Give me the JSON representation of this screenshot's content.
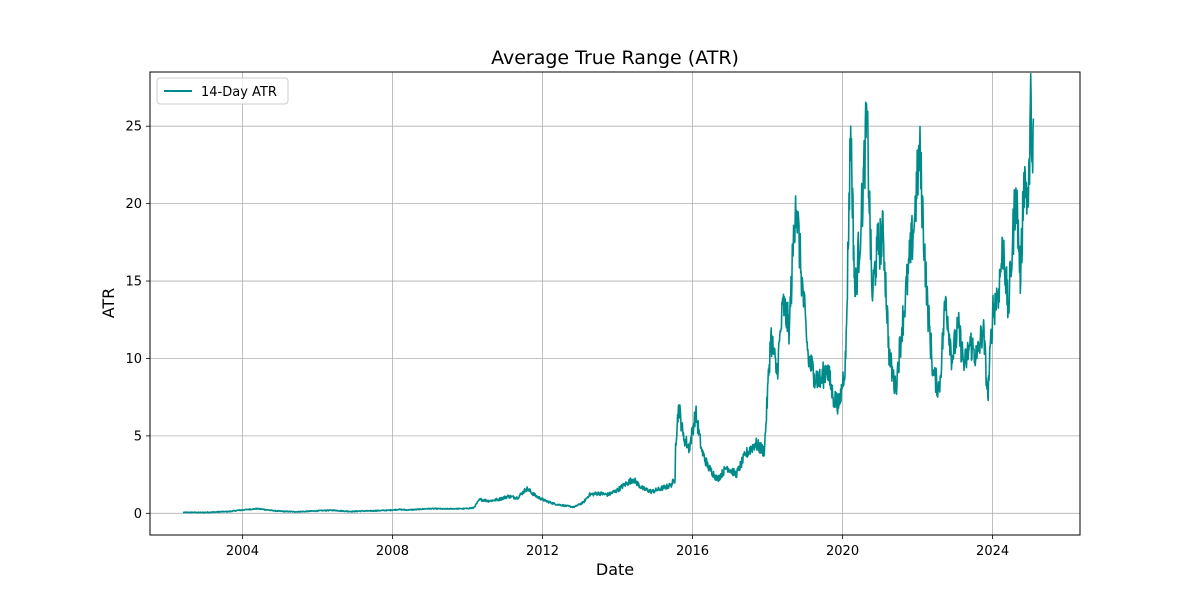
{
  "chart_data": {
    "type": "line",
    "title": "Average True Range (ATR)",
    "xlabel": "Date",
    "ylabel": "ATR",
    "legend": {
      "placement": "top-left"
    },
    "grid": true,
    "xlim": [
      "2001-07-15",
      "2026-05-01"
    ],
    "ylim": [
      -1.4,
      28.5
    ],
    "x_ticks": [
      "2004",
      "2008",
      "2012",
      "2016",
      "2020",
      "2024"
    ],
    "y_ticks": [
      "0",
      "5",
      "10",
      "15",
      "20",
      "25"
    ],
    "series": [
      {
        "name": "14-Day ATR",
        "color": "#008b8b",
        "points": [
          [
            "2002-06-01",
            0.05
          ],
          [
            "2002-09-01",
            0.06
          ],
          [
            "2002-12-01",
            0.05
          ],
          [
            "2003-03-01",
            0.07
          ],
          [
            "2003-06-01",
            0.1
          ],
          [
            "2003-09-01",
            0.12
          ],
          [
            "2003-12-01",
            0.2
          ],
          [
            "2004-03-01",
            0.25
          ],
          [
            "2004-06-01",
            0.3
          ],
          [
            "2004-09-01",
            0.22
          ],
          [
            "2004-12-01",
            0.15
          ],
          [
            "2005-03-01",
            0.12
          ],
          [
            "2005-06-01",
            0.1
          ],
          [
            "2005-09-01",
            0.12
          ],
          [
            "2005-12-01",
            0.15
          ],
          [
            "2006-03-01",
            0.18
          ],
          [
            "2006-06-01",
            0.2
          ],
          [
            "2006-09-01",
            0.15
          ],
          [
            "2006-12-01",
            0.12
          ],
          [
            "2007-03-01",
            0.15
          ],
          [
            "2007-06-01",
            0.15
          ],
          [
            "2007-09-01",
            0.18
          ],
          [
            "2007-12-01",
            0.2
          ],
          [
            "2008-03-01",
            0.25
          ],
          [
            "2008-06-01",
            0.22
          ],
          [
            "2008-09-01",
            0.25
          ],
          [
            "2008-12-01",
            0.3
          ],
          [
            "2009-03-01",
            0.3
          ],
          [
            "2009-06-01",
            0.28
          ],
          [
            "2009-09-01",
            0.3
          ],
          [
            "2009-12-01",
            0.3
          ],
          [
            "2010-03-01",
            0.35
          ],
          [
            "2010-05-01",
            0.9
          ],
          [
            "2010-08-01",
            0.8
          ],
          [
            "2010-11-01",
            0.9
          ],
          [
            "2011-02-01",
            1.1
          ],
          [
            "2011-05-01",
            1.0
          ],
          [
            "2011-08-01",
            1.6
          ],
          [
            "2011-11-01",
            1.1
          ],
          [
            "2012-02-01",
            0.8
          ],
          [
            "2012-05-01",
            0.6
          ],
          [
            "2012-08-01",
            0.5
          ],
          [
            "2012-11-01",
            0.4
          ],
          [
            "2013-02-01",
            0.7
          ],
          [
            "2013-04-01",
            1.2
          ],
          [
            "2013-07-01",
            1.3
          ],
          [
            "2013-10-01",
            1.2
          ],
          [
            "2014-01-01",
            1.5
          ],
          [
            "2014-03-01",
            1.8
          ],
          [
            "2014-06-01",
            2.2
          ],
          [
            "2014-09-01",
            1.6
          ],
          [
            "2014-12-01",
            1.4
          ],
          [
            "2015-03-01",
            1.6
          ],
          [
            "2015-06-01",
            1.8
          ],
          [
            "2015-07-15",
            2.2
          ],
          [
            "2015-07-20",
            4.5
          ],
          [
            "2015-08-20",
            7.0
          ],
          [
            "2015-10-01",
            5.0
          ],
          [
            "2015-12-01",
            4.2
          ],
          [
            "2016-02-01",
            6.5
          ],
          [
            "2016-04-01",
            4.0
          ],
          [
            "2016-06-01",
            3.0
          ],
          [
            "2016-09-01",
            2.2
          ],
          [
            "2016-12-01",
            3.0
          ],
          [
            "2017-03-01",
            2.5
          ],
          [
            "2017-06-01",
            3.8
          ],
          [
            "2017-09-01",
            4.5
          ],
          [
            "2017-12-01",
            4.0
          ],
          [
            "2018-02-01",
            11.5
          ],
          [
            "2018-04-01",
            9.0
          ],
          [
            "2018-06-01",
            13.5
          ],
          [
            "2018-08-01",
            12.0
          ],
          [
            "2018-10-01",
            20.5
          ],
          [
            "2018-12-01",
            15.0
          ],
          [
            "2019-02-01",
            10.0
          ],
          [
            "2019-04-01",
            9.0
          ],
          [
            "2019-06-01",
            8.5
          ],
          [
            "2019-08-01",
            9.5
          ],
          [
            "2019-10-01",
            7.5
          ],
          [
            "2019-12-01",
            7.0
          ],
          [
            "2020-02-01",
            10.0
          ],
          [
            "2020-03-20",
            25.0
          ],
          [
            "2020-05-01",
            14.0
          ],
          [
            "2020-07-01",
            19.0
          ],
          [
            "2020-08-25",
            25.6
          ],
          [
            "2020-10-15",
            14.0
          ],
          [
            "2020-12-01",
            17.0
          ],
          [
            "2021-02-01",
            18.0
          ],
          [
            "2021-04-01",
            10.0
          ],
          [
            "2021-06-01",
            8.0
          ],
          [
            "2021-08-01",
            12.0
          ],
          [
            "2021-10-01",
            15.5
          ],
          [
            "2021-12-01",
            19.0
          ],
          [
            "2022-01-20",
            23.5
          ],
          [
            "2022-04-01",
            14.0
          ],
          [
            "2022-06-01",
            9.0
          ],
          [
            "2022-08-01",
            8.0
          ],
          [
            "2022-10-01",
            14.0
          ],
          [
            "2022-12-01",
            10.0
          ],
          [
            "2023-02-01",
            12.0
          ],
          [
            "2023-04-01",
            9.5
          ],
          [
            "2023-06-01",
            11.0
          ],
          [
            "2023-08-01",
            10.0
          ],
          [
            "2023-10-01",
            12.0
          ],
          [
            "2023-11-15",
            7.5
          ],
          [
            "2024-01-01",
            13.0
          ],
          [
            "2024-03-01",
            14.5
          ],
          [
            "2024-04-15",
            17.5
          ],
          [
            "2024-06-01",
            13.0
          ],
          [
            "2024-08-15",
            21.0
          ],
          [
            "2024-10-01",
            15.0
          ],
          [
            "2024-11-01",
            22.0
          ],
          [
            "2024-12-15",
            20.0
          ],
          [
            "2025-01-10",
            27.0
          ],
          [
            "2025-01-25",
            22.0
          ],
          [
            "2025-02-01",
            25.5
          ]
        ]
      }
    ]
  }
}
